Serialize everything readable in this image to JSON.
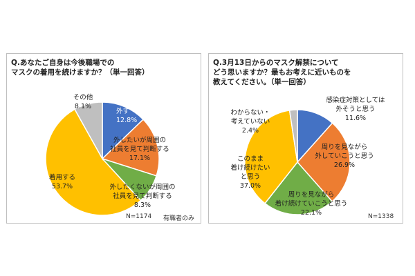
{
  "chart_data": [
    {
      "type": "pie",
      "title": "Q.あなたご自身は今後職場での\nマスクの着用を続けますか？（単一回答）",
      "slices": [
        {
          "label": "外す",
          "value": 12.8,
          "value_text": "12.8%",
          "color": "#4472C4",
          "label_color": "#ffffff"
        },
        {
          "label": "外したいが周囲の社員を見て判断する",
          "label_lines": [
            "外したいが周囲の",
            "社員を見て判断する"
          ],
          "value": 17.1,
          "value_text": "17.1%",
          "color": "#ED7D31",
          "label_color": "#222222"
        },
        {
          "label": "外したくないが周囲の社員を見て判断する",
          "label_lines": [
            "外したくないが周囲の",
            "社員を見て判断する"
          ],
          "value": 8.3,
          "value_text": "8.3%",
          "color": "#70AD47",
          "label_color": "#222222"
        },
        {
          "label": "着用する",
          "value": 53.7,
          "value_text": "53.7%",
          "color": "#FFC000",
          "label_color": "#222222"
        },
        {
          "label": "その他",
          "value": 8.1,
          "value_text": "8.1%",
          "color": "#BFBFBF",
          "label_color": "#222222"
        }
      ],
      "notes": [
        "N=1174",
        "有職者のみ"
      ]
    },
    {
      "type": "pie",
      "title": "Q.3月13日からのマスク解禁について\nどう思いますか？最もお考えに近いものを\n教えてください。（単一回答）",
      "slices": [
        {
          "label": "感染症対策としては外そうと思う",
          "label_lines": [
            "感染症対策としては",
            "外そうと思う"
          ],
          "value": 11.6,
          "value_text": "11.6%",
          "color": "#4472C4",
          "label_color": "#222222"
        },
        {
          "label": "周りを見ながら外していこうと思う",
          "label_lines": [
            "周りを見ながら",
            "外していこうと思う"
          ],
          "value": 26.9,
          "value_text": "26.9%",
          "color": "#ED7D31",
          "label_color": "#222222"
        },
        {
          "label": "周りを見ながら着け続けていこうと思う",
          "label_lines": [
            "周りを見ながら",
            "着け続けていこうと思う"
          ],
          "value": 22.1,
          "value_text": "22.1%",
          "color": "#70AD47",
          "label_color": "#222222"
        },
        {
          "label": "このまま着け続けたいと思う",
          "label_lines": [
            "このまま",
            "着け続けたい",
            "と思う"
          ],
          "value": 37.0,
          "value_text": "37.0%",
          "color": "#FFC000",
          "label_color": "#222222"
        },
        {
          "label": "わからない・考えていない",
          "label_lines": [
            "わからない・",
            "考えていない"
          ],
          "value": 2.4,
          "value_text": "2.4%",
          "color": "#BFBFBF",
          "label_color": "#222222"
        }
      ],
      "notes": [
        "N=1338"
      ]
    }
  ]
}
